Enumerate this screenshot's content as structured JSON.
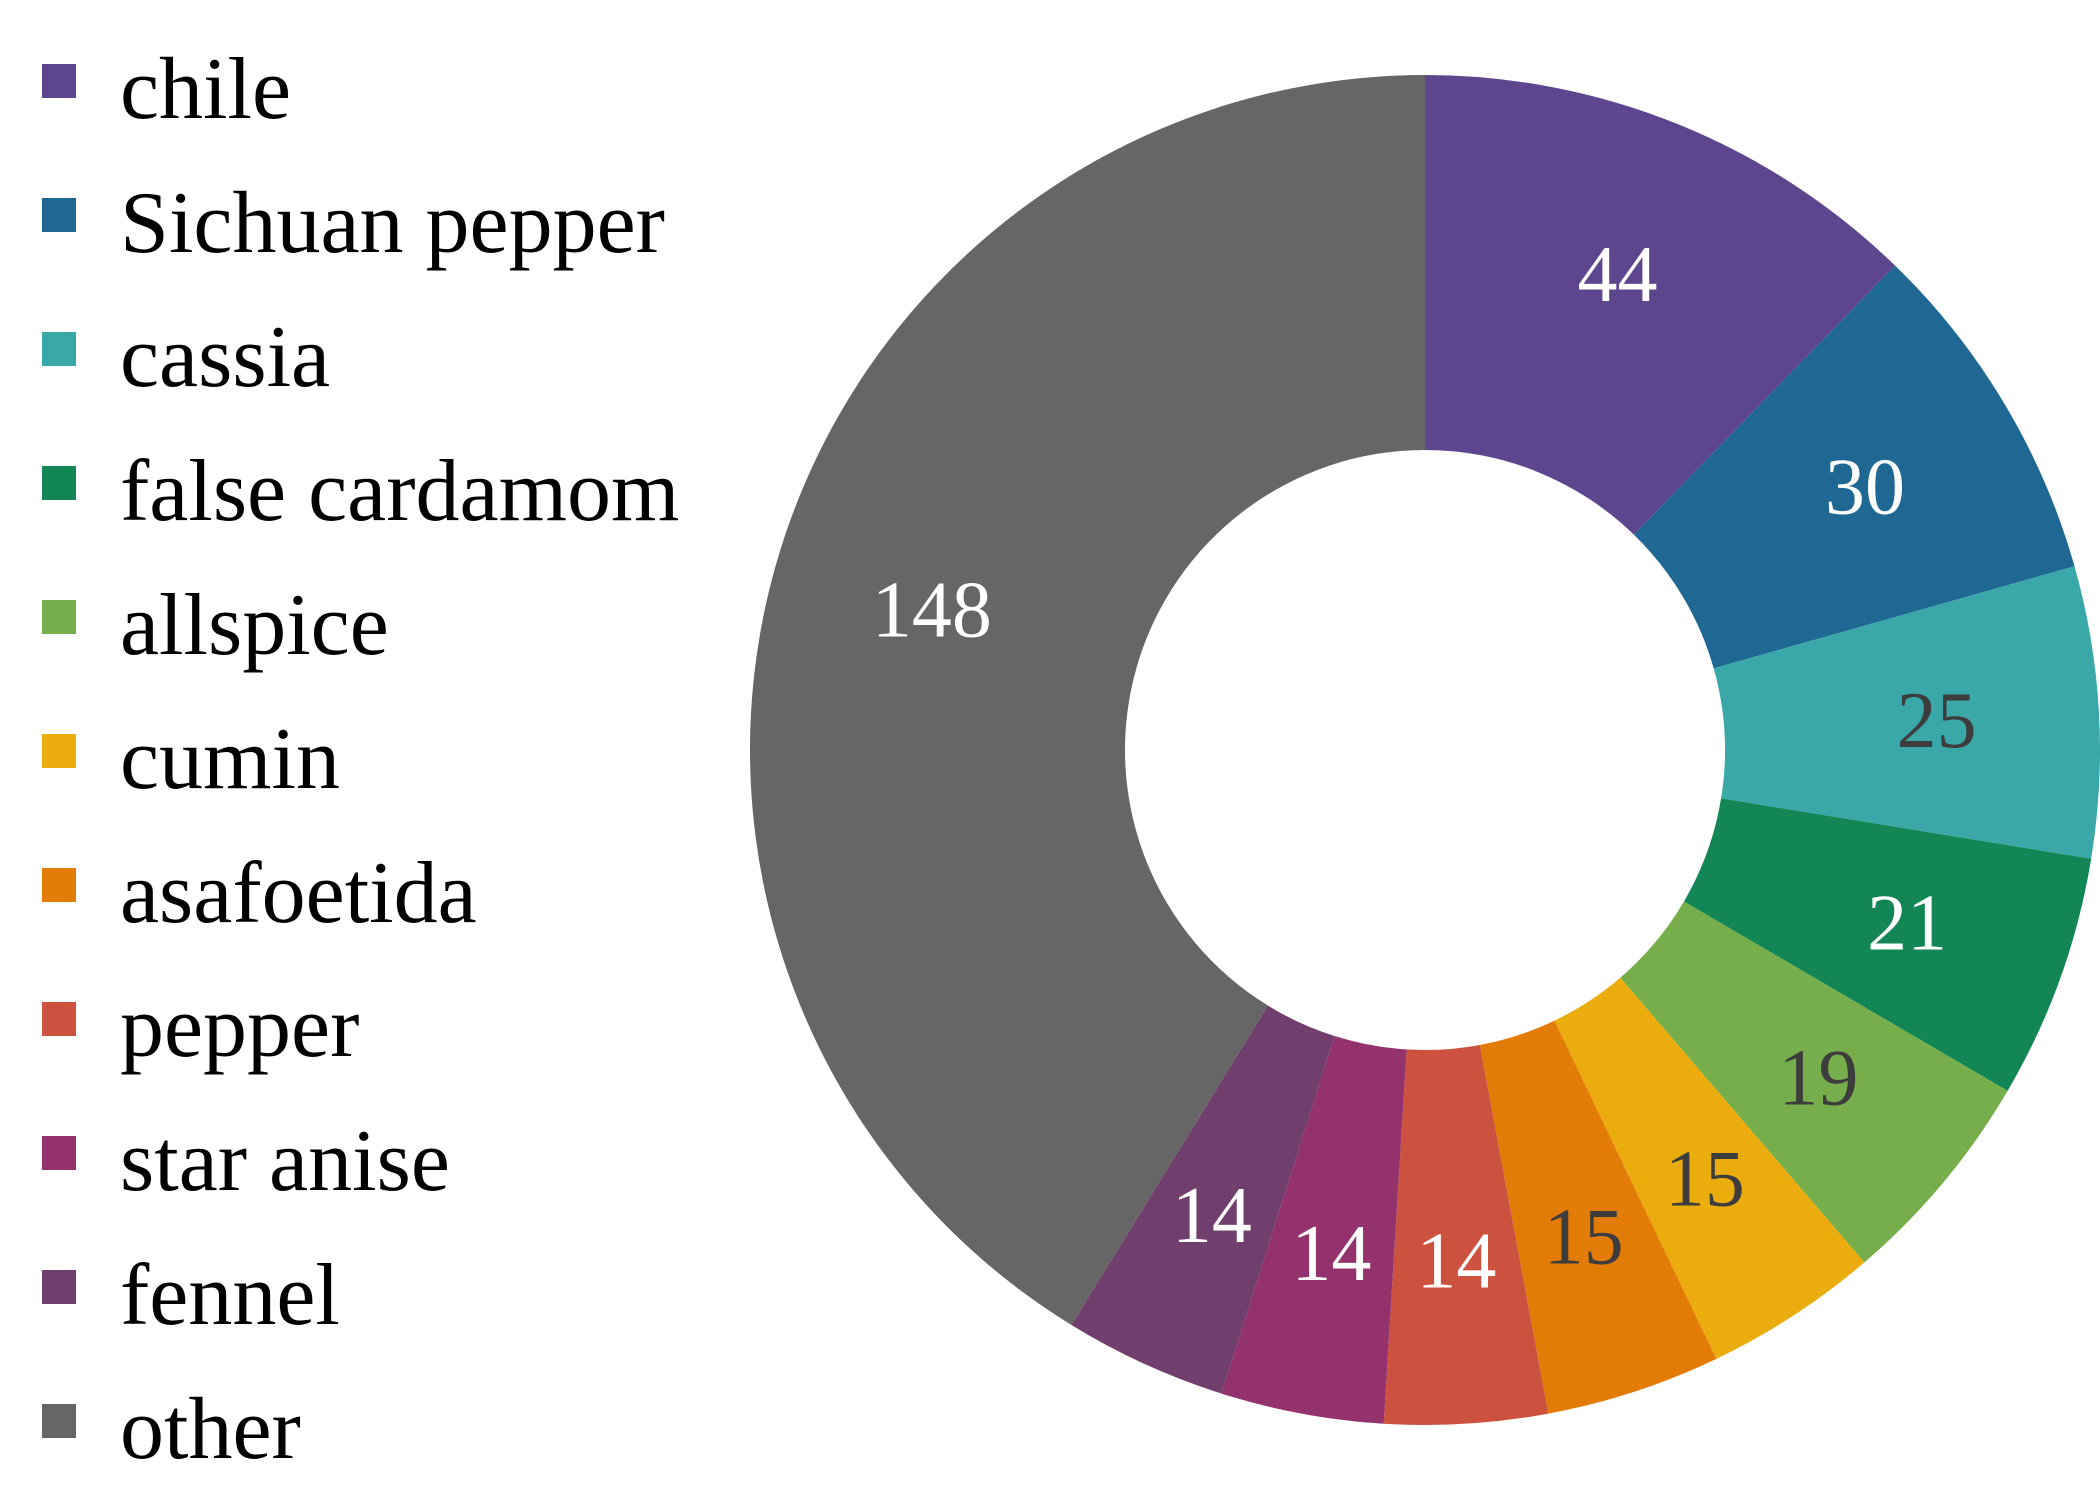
{
  "chart_data": {
    "type": "pie",
    "variant": "donut",
    "title": "",
    "categories": [
      "chile",
      "Sichuan pepper",
      "cassia",
      "false cardamom",
      "allspice",
      "cumin",
      "asafoetida",
      "pepper",
      "star anise",
      "fennel",
      "other"
    ],
    "values": [
      44,
      30,
      25,
      21,
      19,
      15,
      15,
      14,
      14,
      14,
      148
    ],
    "colors": [
      "#5e468e",
      "#1e6893",
      "#3aa7a8",
      "#128655",
      "#75ae4b",
      "#ebac0d",
      "#e27c06",
      "#cc523f",
      "#93326d",
      "#703f6d",
      "#666666"
    ],
    "label_colors": [
      "#ffffff",
      "#ffffff",
      "#3d3d3d",
      "#ffffff",
      "#3d3d3d",
      "#3d3d3d",
      "#3d3d3d",
      "#ffffff",
      "#ffffff",
      "#ffffff",
      "#ffffff"
    ],
    "legend_position": "left",
    "start_angle_deg": 0,
    "direction": "clockwise"
  }
}
